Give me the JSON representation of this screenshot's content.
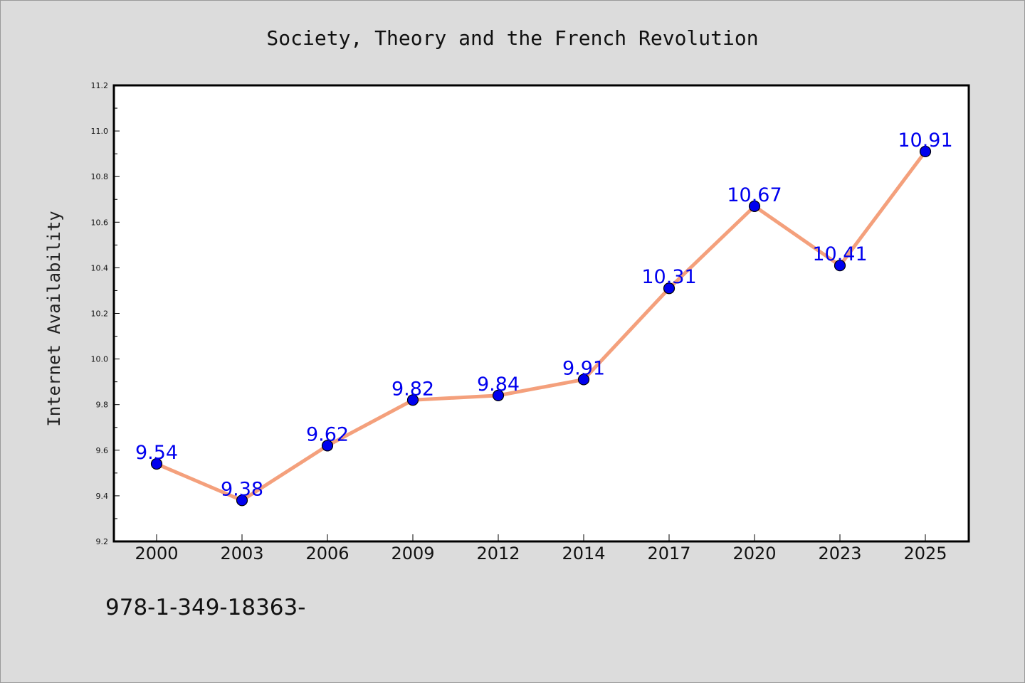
{
  "chart_data": {
    "type": "line",
    "title": "Society, Theory and the French Revolution",
    "xlabel": "",
    "ylabel": "Internet Availability",
    "categories": [
      "2000",
      "2003",
      "2006",
      "2009",
      "2012",
      "2014",
      "2017",
      "2020",
      "2023",
      "2025"
    ],
    "series": [
      {
        "name": "",
        "values": [
          9.54,
          9.38,
          9.62,
          9.82,
          9.84,
          9.91,
          10.31,
          10.67,
          10.41,
          10.91
        ],
        "data_labels": [
          "9.54",
          "9.38",
          "9.62",
          "9.82",
          "9.84",
          "9.91",
          "10.31",
          "10.67",
          "10.41",
          "10.91"
        ]
      }
    ],
    "ylim": [
      9.2,
      11.2
    ],
    "yticks": [
      "9.2",
      "9.4",
      "9.6",
      "9.8",
      "10.0",
      "10.2",
      "10.4",
      "10.6",
      "10.8",
      "11.0",
      "11.2"
    ],
    "grid": false,
    "legend": "none",
    "colors": {
      "line": "#f4a07c",
      "marker": "#0000ee",
      "label": "#0000ee",
      "background": "#dcdcdc",
      "plot_area": "#ffffff"
    }
  },
  "footer": {
    "text": "978-1-349-18363-"
  }
}
